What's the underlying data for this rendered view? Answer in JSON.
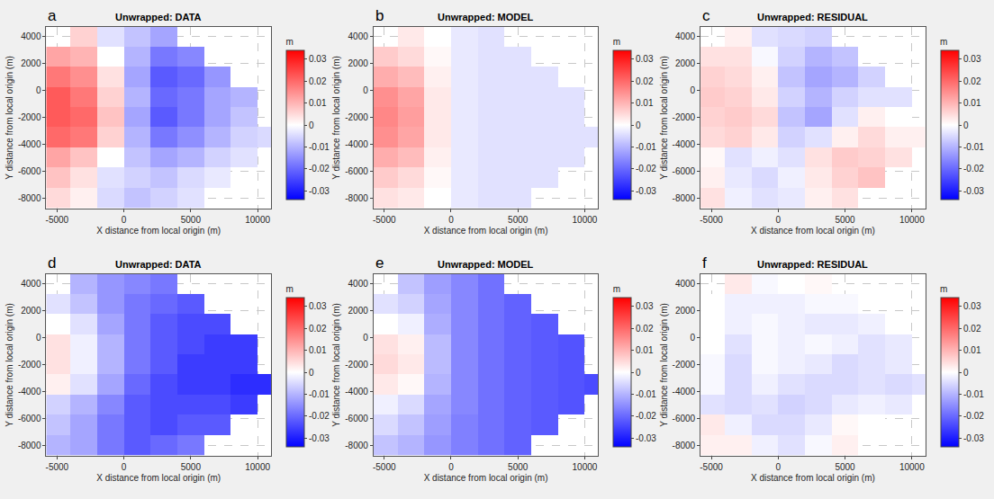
{
  "chart_data": [
    {
      "type": "heatmap",
      "label": "a",
      "title": "Unwrapped: DATA",
      "x_label": "X distance from local origin (m)",
      "y_label": "Y distance from local origin (m)",
      "x": [
        -5000,
        -3000,
        -1000,
        1000,
        3000,
        5000,
        7000,
        9000,
        11000
      ],
      "y": [
        -8000,
        -6500,
        -5000,
        -3500,
        -2000,
        -500,
        1000,
        2500,
        4000
      ],
      "z": [
        [
          0.005,
          0.002,
          -0.005,
          -0.008,
          -0.006,
          -0.004,
          null,
          null,
          null
        ],
        [
          0.008,
          0.004,
          -0.004,
          -0.006,
          -0.008,
          -0.005,
          -0.003,
          null,
          null
        ],
        [
          0.012,
          0.008,
          0.0,
          -0.008,
          -0.012,
          -0.01,
          -0.006,
          -0.004,
          null
        ],
        [
          0.02,
          0.018,
          0.006,
          -0.01,
          -0.018,
          -0.015,
          -0.01,
          -0.006,
          -0.005
        ],
        [
          0.022,
          0.02,
          0.008,
          -0.012,
          -0.022,
          -0.018,
          -0.012,
          -0.008,
          null
        ],
        [
          0.022,
          0.018,
          0.006,
          -0.01,
          -0.02,
          -0.018,
          -0.012,
          -0.01,
          null
        ],
        [
          0.018,
          0.015,
          0.004,
          -0.012,
          -0.022,
          -0.02,
          -0.014,
          null,
          null
        ],
        [
          0.012,
          0.01,
          0.0,
          -0.01,
          -0.018,
          -0.016,
          null,
          null,
          null
        ],
        [
          null,
          0.006,
          -0.004,
          -0.008,
          -0.012,
          null,
          null,
          null,
          null
        ]
      ],
      "xlim": [
        -5800,
        11000
      ],
      "ylim": [
        -8800,
        4700
      ],
      "xticks": [
        -5000,
        0,
        5000,
        10000
      ],
      "yticks": [
        -8000,
        -6000,
        -4000,
        -2000,
        0,
        2000,
        4000
      ],
      "grid": true,
      "colors": [
        "#0000ff",
        "#ffffff",
        "#ff0000"
      ],
      "colorbar": {
        "title": "m",
        "range": [
          -0.034,
          0.034
        ],
        "ticks": [
          -0.03,
          -0.02,
          -0.01,
          0,
          0.01,
          0.02,
          0.03
        ]
      }
    },
    {
      "type": "heatmap",
      "label": "b",
      "title": "Unwrapped: MODEL",
      "x_label": "X distance from local origin (m)",
      "y_label": "Y distance from local origin (m)",
      "x": [
        -5000,
        -3000,
        -1000,
        1000,
        3000,
        5000,
        7000,
        9000,
        11000
      ],
      "y": [
        -8000,
        -6500,
        -5000,
        -3500,
        -2000,
        -500,
        1000,
        2500,
        4000
      ],
      "z": [
        [
          0.004,
          0.003,
          0.0,
          -0.003,
          -0.004,
          -0.004,
          null,
          null,
          null
        ],
        [
          0.007,
          0.005,
          0.001,
          -0.003,
          -0.004,
          -0.004,
          -0.004,
          null,
          null
        ],
        [
          0.011,
          0.009,
          0.002,
          -0.003,
          -0.004,
          -0.004,
          -0.004,
          -0.004,
          null
        ],
        [
          0.015,
          0.012,
          0.003,
          -0.003,
          -0.004,
          -0.004,
          -0.004,
          -0.004,
          -0.004
        ],
        [
          0.016,
          0.013,
          0.003,
          -0.003,
          -0.004,
          -0.004,
          -0.004,
          -0.004,
          null
        ],
        [
          0.015,
          0.012,
          0.003,
          -0.003,
          -0.004,
          -0.004,
          -0.004,
          -0.004,
          null
        ],
        [
          0.011,
          0.009,
          0.002,
          -0.003,
          -0.004,
          -0.004,
          -0.004,
          null,
          null
        ],
        [
          0.007,
          0.005,
          0.001,
          -0.003,
          -0.004,
          -0.004,
          null,
          null,
          null
        ],
        [
          null,
          0.003,
          0.0,
          -0.003,
          -0.004,
          null,
          null,
          null,
          null
        ]
      ],
      "xlim": [
        -5800,
        11000
      ],
      "ylim": [
        -8800,
        4700
      ],
      "xticks": [
        -5000,
        0,
        5000,
        10000
      ],
      "yticks": [
        -8000,
        -6000,
        -4000,
        -2000,
        0,
        2000,
        4000
      ],
      "grid": true,
      "colors": [
        "#0000ff",
        "#ffffff",
        "#ff0000"
      ],
      "colorbar": {
        "title": "m",
        "range": [
          -0.034,
          0.034
        ],
        "ticks": [
          -0.03,
          -0.02,
          -0.01,
          0,
          0.01,
          0.02,
          0.03
        ]
      }
    },
    {
      "type": "heatmap",
      "label": "c",
      "title": "Unwrapped: RESIDUAL",
      "x_label": "X distance from local origin (m)",
      "y_label": "Y distance from local origin (m)",
      "x": [
        -5000,
        -3000,
        -1000,
        1000,
        3000,
        5000,
        7000,
        9000,
        11000
      ],
      "y": [
        -8000,
        -6500,
        -5000,
        -3500,
        -2000,
        -500,
        1000,
        2500,
        4000
      ],
      "z": [
        [
          0.004,
          -0.002,
          -0.004,
          -0.003,
          0.002,
          0.004,
          null,
          null,
          null
        ],
        [
          0.002,
          -0.003,
          -0.005,
          -0.002,
          0.003,
          0.006,
          0.008,
          null,
          null
        ],
        [
          0.001,
          -0.004,
          -0.002,
          -0.004,
          0.004,
          0.007,
          0.006,
          0.004,
          null
        ],
        [
          0.005,
          0.006,
          0.003,
          -0.006,
          -0.004,
          0.002,
          0.005,
          0.002,
          0.002
        ],
        [
          0.006,
          0.007,
          0.005,
          -0.008,
          -0.012,
          -0.004,
          0.002,
          0.0,
          null
        ],
        [
          0.007,
          0.006,
          0.003,
          -0.006,
          -0.01,
          -0.006,
          -0.004,
          -0.004,
          null
        ],
        [
          0.006,
          0.005,
          0.002,
          -0.008,
          -0.012,
          -0.01,
          -0.006,
          null,
          null
        ],
        [
          0.004,
          0.004,
          -0.001,
          -0.006,
          -0.01,
          -0.008,
          null,
          null,
          null
        ],
        [
          null,
          0.002,
          -0.004,
          -0.005,
          -0.006,
          null,
          null,
          null,
          null
        ]
      ],
      "xlim": [
        -5800,
        11000
      ],
      "ylim": [
        -8800,
        4700
      ],
      "xticks": [
        -5000,
        0,
        5000,
        10000
      ],
      "yticks": [
        -8000,
        -6000,
        -4000,
        -2000,
        0,
        2000,
        4000
      ],
      "grid": true,
      "colors": [
        "#0000ff",
        "#ffffff",
        "#ff0000"
      ],
      "colorbar": {
        "title": "m",
        "range": [
          -0.034,
          0.034
        ],
        "ticks": [
          -0.03,
          -0.02,
          -0.01,
          0,
          0.01,
          0.02,
          0.03
        ]
      }
    },
    {
      "type": "heatmap",
      "label": "d",
      "title": "Unwrapped: DATA",
      "x_label": "X distance from local origin (m)",
      "y_label": "Y distance from local origin (m)",
      "x": [
        -5000,
        -3000,
        -1000,
        1000,
        3000,
        5000,
        7000,
        9000,
        11000
      ],
      "y": [
        -8000,
        -6500,
        -5000,
        -3500,
        -2000,
        -500,
        1000,
        2500,
        4000
      ],
      "z": [
        [
          -0.01,
          -0.012,
          -0.018,
          -0.022,
          -0.02,
          -0.018,
          null,
          null,
          null
        ],
        [
          -0.008,
          -0.012,
          -0.018,
          -0.022,
          -0.024,
          -0.022,
          -0.022,
          null,
          null
        ],
        [
          -0.006,
          -0.01,
          -0.016,
          -0.022,
          -0.024,
          -0.024,
          -0.024,
          -0.026,
          null
        ],
        [
          0.002,
          -0.004,
          -0.012,
          -0.02,
          -0.024,
          -0.026,
          -0.026,
          -0.028,
          -0.028
        ],
        [
          0.004,
          -0.002,
          -0.01,
          -0.018,
          -0.022,
          -0.026,
          -0.026,
          -0.026,
          null
        ],
        [
          0.004,
          -0.002,
          -0.01,
          -0.018,
          -0.022,
          -0.024,
          -0.026,
          -0.026,
          null
        ],
        [
          0.0,
          -0.004,
          -0.012,
          -0.018,
          -0.022,
          -0.024,
          -0.024,
          null,
          null
        ],
        [
          -0.004,
          -0.008,
          -0.014,
          -0.018,
          -0.02,
          -0.022,
          null,
          null,
          null
        ],
        [
          null,
          -0.01,
          -0.014,
          -0.016,
          -0.018,
          null,
          null,
          null,
          null
        ]
      ],
      "xlim": [
        -5800,
        11000
      ],
      "ylim": [
        -8800,
        4700
      ],
      "xticks": [
        -5000,
        0,
        5000,
        10000
      ],
      "yticks": [
        -8000,
        -6000,
        -4000,
        -2000,
        0,
        2000,
        4000
      ],
      "grid": true,
      "colors": [
        "#0000ff",
        "#ffffff",
        "#ff0000"
      ],
      "colorbar": {
        "title": "m",
        "range": [
          -0.034,
          0.034
        ],
        "ticks": [
          -0.03,
          -0.02,
          -0.01,
          0,
          0.01,
          0.02,
          0.03
        ]
      }
    },
    {
      "type": "heatmap",
      "label": "e",
      "title": "Unwrapped: MODEL",
      "x_label": "X distance from local origin (m)",
      "y_label": "Y distance from local origin (m)",
      "x": [
        -5000,
        -3000,
        -1000,
        1000,
        3000,
        5000,
        7000,
        9000,
        11000
      ],
      "y": [
        -8000,
        -6500,
        -5000,
        -3500,
        -2000,
        -500,
        1000,
        2500,
        4000
      ],
      "z": [
        [
          -0.008,
          -0.01,
          -0.014,
          -0.017,
          -0.019,
          -0.021,
          null,
          null,
          null
        ],
        [
          -0.005,
          -0.008,
          -0.013,
          -0.017,
          -0.019,
          -0.021,
          -0.022,
          null,
          null
        ],
        [
          -0.002,
          -0.005,
          -0.012,
          -0.016,
          -0.019,
          -0.021,
          -0.022,
          -0.023,
          null
        ],
        [
          0.003,
          0.001,
          -0.01,
          -0.016,
          -0.019,
          -0.021,
          -0.022,
          -0.023,
          -0.024
        ],
        [
          0.005,
          0.003,
          -0.009,
          -0.016,
          -0.019,
          -0.021,
          -0.022,
          -0.023,
          null
        ],
        [
          0.004,
          0.002,
          -0.009,
          -0.016,
          -0.019,
          -0.021,
          -0.022,
          -0.023,
          null
        ],
        [
          0.0,
          -0.002,
          -0.011,
          -0.016,
          -0.019,
          -0.021,
          -0.022,
          null,
          null
        ],
        [
          -0.004,
          -0.006,
          -0.012,
          -0.016,
          -0.019,
          -0.021,
          null,
          null,
          null
        ],
        [
          null,
          -0.008,
          -0.013,
          -0.016,
          -0.019,
          null,
          null,
          null,
          null
        ]
      ],
      "xlim": [
        -5800,
        11000
      ],
      "ylim": [
        -8800,
        4700
      ],
      "xticks": [
        -5000,
        0,
        5000,
        10000
      ],
      "yticks": [
        -8000,
        -6000,
        -4000,
        -2000,
        0,
        2000,
        4000
      ],
      "grid": true,
      "colors": [
        "#0000ff",
        "#ffffff",
        "#ff0000"
      ],
      "colorbar": {
        "title": "m",
        "range": [
          -0.034,
          0.034
        ],
        "ticks": [
          -0.03,
          -0.02,
          -0.01,
          0,
          0.01,
          0.02,
          0.03
        ]
      }
    },
    {
      "type": "heatmap",
      "label": "f",
      "title": "Unwrapped: RESIDUAL",
      "x_label": "X distance from local origin (m)",
      "y_label": "Y distance from local origin (m)",
      "x": [
        -5000,
        -3000,
        -1000,
        1000,
        3000,
        5000,
        7000,
        9000,
        11000
      ],
      "y": [
        -8000,
        -6500,
        -5000,
        -3500,
        -2000,
        -500,
        1000,
        2500,
        4000
      ],
      "z": [
        [
          0.002,
          0.002,
          -0.002,
          -0.004,
          -0.001,
          0.002,
          null,
          null,
          null
        ],
        [
          0.003,
          -0.002,
          -0.005,
          -0.005,
          -0.003,
          0.001,
          0.0,
          null,
          null
        ],
        [
          -0.004,
          -0.005,
          -0.004,
          -0.006,
          -0.005,
          -0.003,
          -0.002,
          -0.003,
          null
        ],
        [
          -0.001,
          -0.005,
          -0.002,
          -0.004,
          -0.005,
          -0.005,
          -0.004,
          -0.005,
          -0.004
        ],
        [
          -0.001,
          -0.005,
          -0.001,
          -0.002,
          -0.003,
          -0.005,
          -0.004,
          -0.003,
          null
        ],
        [
          0.0,
          -0.004,
          -0.001,
          -0.002,
          -0.001,
          -0.002,
          -0.004,
          -0.003,
          null
        ],
        [
          0.0,
          -0.002,
          -0.001,
          -0.002,
          -0.003,
          -0.003,
          -0.002,
          null,
          null
        ],
        [
          0.0,
          -0.002,
          -0.002,
          -0.002,
          -0.001,
          -0.001,
          null,
          null,
          null
        ],
        [
          null,
          0.003,
          -0.001,
          0.0,
          0.001,
          null,
          null,
          null,
          null
        ]
      ],
      "xlim": [
        -5800,
        11000
      ],
      "ylim": [
        -8800,
        4700
      ],
      "xticks": [
        -5000,
        0,
        5000,
        10000
      ],
      "yticks": [
        -8000,
        -6000,
        -4000,
        -2000,
        0,
        2000,
        4000
      ],
      "grid": true,
      "colors": [
        "#0000ff",
        "#ffffff",
        "#ff0000"
      ],
      "colorbar": {
        "title": "m",
        "range": [
          -0.034,
          0.034
        ],
        "ticks": [
          -0.03,
          -0.02,
          -0.01,
          0,
          0.01,
          0.02,
          0.03
        ]
      }
    }
  ]
}
